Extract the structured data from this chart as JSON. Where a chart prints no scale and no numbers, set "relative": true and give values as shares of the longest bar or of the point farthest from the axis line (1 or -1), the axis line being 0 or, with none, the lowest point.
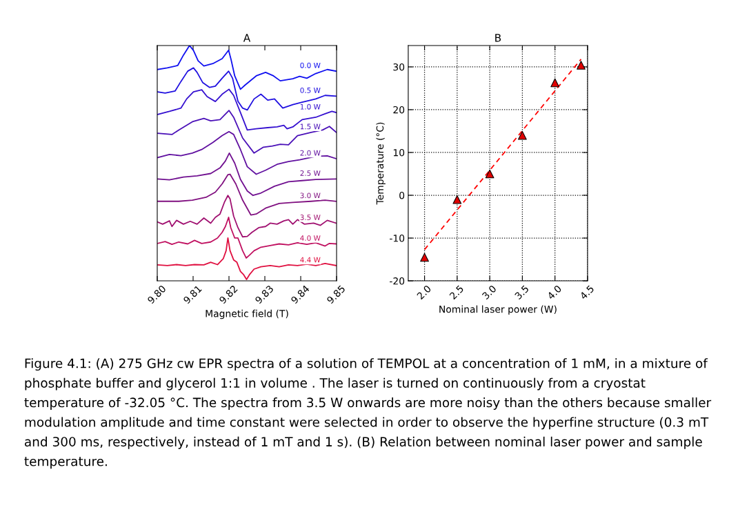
{
  "chart_data": [
    {
      "type": "line",
      "title": "A",
      "xlabel": "Magnetic field (T)",
      "relative": true,
      "xlim": [
        9.8,
        9.85
      ],
      "xticks": [
        {
          "value": 9.8,
          "label": "9.80"
        },
        {
          "value": 9.81,
          "label": "9.81"
        },
        {
          "value": 9.82,
          "label": "9.82"
        },
        {
          "value": 9.83,
          "label": "9.83"
        },
        {
          "value": 9.84,
          "label": "9.84"
        },
        {
          "value": 9.85,
          "label": "9.85"
        }
      ],
      "series": [
        {
          "name": "0.0 W",
          "color": "#1010f0",
          "x": [
            9.8001,
            9.8028,
            9.8057,
            9.8073,
            9.809,
            9.8101,
            9.8114,
            9.813,
            9.8155,
            9.8181,
            9.8199,
            9.8206,
            9.8216,
            9.8232,
            9.8245,
            9.8276,
            9.8302,
            9.8324,
            9.8343,
            9.8378,
            9.8397,
            9.8417,
            9.8442,
            9.8474,
            9.8499
          ],
          "values": [
            0.898,
            0.905,
            0.915,
            0.959,
            1.0,
            0.979,
            0.935,
            0.913,
            0.923,
            0.944,
            0.98,
            0.939,
            0.871,
            0.814,
            0.832,
            0.871,
            0.886,
            0.871,
            0.85,
            0.859,
            0.869,
            0.861,
            0.881,
            0.898,
            0.891
          ]
        },
        {
          "name": "0.5 W",
          "color": "#2010e0",
          "x": [
            9.8001,
            9.8022,
            9.805,
            9.8066,
            9.8085,
            9.8101,
            9.8111,
            9.8127,
            9.8146,
            9.8162,
            9.8181,
            9.8199,
            9.821,
            9.8225,
            9.8238,
            9.8251,
            9.827,
            9.8289,
            9.8308,
            9.8327,
            9.835,
            9.8378,
            9.8404,
            9.8442,
            9.8468,
            9.8499
          ],
          "values": [
            0.803,
            0.798,
            0.807,
            0.847,
            0.891,
            0.905,
            0.886,
            0.842,
            0.822,
            0.827,
            0.861,
            0.891,
            0.861,
            0.763,
            0.734,
            0.726,
            0.773,
            0.793,
            0.768,
            0.773,
            0.734,
            0.749,
            0.759,
            0.773,
            0.788,
            0.785
          ]
        },
        {
          "name": "1.0 W",
          "color": "#3510d0",
          "x": [
            9.8001,
            9.8034,
            9.8066,
            9.8082,
            9.8101,
            9.8124,
            9.8139,
            9.8162,
            9.8181,
            9.82,
            9.8213,
            9.8232,
            9.8251,
            9.8276,
            9.8308,
            9.8334,
            9.8353,
            9.8362,
            9.8378,
            9.8404,
            9.8442,
            9.8468,
            9.8487,
            9.8499
          ],
          "values": [
            0.707,
            0.72,
            0.734,
            0.773,
            0.803,
            0.812,
            0.783,
            0.762,
            0.793,
            0.814,
            0.788,
            0.715,
            0.641,
            0.646,
            0.651,
            0.654,
            0.661,
            0.646,
            0.654,
            0.685,
            0.695,
            0.71,
            0.72,
            0.715
          ]
        },
        {
          "name": "1.5 W",
          "color": "#4a10b8",
          "x": [
            9.8001,
            9.8041,
            9.806,
            9.8098,
            9.813,
            9.8149,
            9.8175,
            9.82,
            9.8213,
            9.8238,
            9.827,
            9.8296,
            9.8321,
            9.8343,
            9.8366,
            9.8391,
            9.8429,
            9.8461,
            9.848,
            9.8499
          ],
          "values": [
            0.627,
            0.622,
            0.641,
            0.676,
            0.69,
            0.68,
            0.685,
            0.724,
            0.695,
            0.607,
            0.543,
            0.568,
            0.573,
            0.58,
            0.578,
            0.617,
            0.631,
            0.641,
            0.656,
            0.631
          ]
        },
        {
          "name": "2.0 W",
          "color": "#6010a0",
          "x": [
            9.8001,
            9.8034,
            9.8066,
            9.8098,
            9.8124,
            9.8155,
            9.8181,
            9.82,
            9.8213,
            9.8232,
            9.8251,
            9.8276,
            9.8302,
            9.8334,
            9.8366,
            9.8397,
            9.8442,
            9.8474,
            9.8499
          ],
          "values": [
            0.524,
            0.537,
            0.532,
            0.543,
            0.558,
            0.588,
            0.617,
            0.634,
            0.622,
            0.558,
            0.485,
            0.453,
            0.47,
            0.495,
            0.507,
            0.514,
            0.529,
            0.531,
            0.519
          ]
        },
        {
          "name": "2.5 W",
          "color": "#701090",
          "x": [
            9.8001,
            9.8034,
            9.8073,
            9.8111,
            9.8149,
            9.8175,
            9.819,
            9.8201,
            9.8216,
            9.8232,
            9.8251,
            9.8267,
            9.8289,
            9.8327,
            9.8366,
            9.8404,
            9.8442,
            9.8499
          ],
          "values": [
            0.433,
            0.429,
            0.441,
            0.446,
            0.456,
            0.48,
            0.509,
            0.543,
            0.5,
            0.431,
            0.382,
            0.363,
            0.373,
            0.402,
            0.421,
            0.426,
            0.431,
            0.433
          ]
        },
        {
          "name": "3.0 W",
          "color": "#801080",
          "x": [
            9.8001,
            9.806,
            9.8098,
            9.8136,
            9.8162,
            9.8181,
            9.8197,
            9.8203,
            9.8219,
            9.8238,
            9.8261,
            9.8276,
            9.8302,
            9.834,
            9.8378,
            9.8429,
            9.8468,
            9.8499
          ],
          "values": [
            0.338,
            0.338,
            0.343,
            0.355,
            0.377,
            0.412,
            0.451,
            0.453,
            0.412,
            0.343,
            0.28,
            0.284,
            0.309,
            0.329,
            0.333,
            0.338,
            0.343,
            0.338
          ]
        },
        {
          "name": "3.5 W",
          "color": "#a01070",
          "x": [
            9.8001,
            9.8015,
            9.8034,
            9.8041,
            9.8054,
            9.8073,
            9.8092,
            9.8111,
            9.813,
            9.8149,
            9.8162,
            9.8175,
            9.8187,
            9.8197,
            9.8203,
            9.8213,
            9.8225,
            9.8238,
            9.8251,
            9.8264,
            9.8283,
            9.8302,
            9.8315,
            9.8334,
            9.8353,
            9.8366,
            9.8378,
            9.8391,
            9.841,
            9.8436,
            9.8455,
            9.8474,
            9.8499
          ],
          "values": [
            0.25,
            0.241,
            0.255,
            0.231,
            0.257,
            0.241,
            0.253,
            0.241,
            0.267,
            0.245,
            0.27,
            0.284,
            0.333,
            0.363,
            0.348,
            0.275,
            0.226,
            0.187,
            0.189,
            0.206,
            0.226,
            0.231,
            0.245,
            0.241,
            0.255,
            0.26,
            0.241,
            0.26,
            0.241,
            0.245,
            0.236,
            0.257,
            0.245
          ]
        },
        {
          "name": "4.0 W",
          "color": "#c01060",
          "x": [
            9.8001,
            9.8022,
            9.8041,
            9.806,
            9.8085,
            9.8104,
            9.8124,
            9.8149,
            9.8168,
            9.8181,
            9.819,
            9.8199,
            9.8205,
            9.8216,
            9.8225,
            9.8238,
            9.8248,
            9.8257,
            9.827,
            9.8289,
            9.8315,
            9.834,
            9.8366,
            9.8391,
            9.8417,
            9.8442,
            9.8468,
            9.848,
            9.8499
          ],
          "values": [
            0.159,
            0.167,
            0.155,
            0.165,
            0.157,
            0.172,
            0.159,
            0.165,
            0.182,
            0.206,
            0.231,
            0.27,
            0.226,
            0.182,
            0.182,
            0.128,
            0.097,
            0.109,
            0.128,
            0.143,
            0.15,
            0.157,
            0.153,
            0.162,
            0.155,
            0.162,
            0.148,
            0.159,
            0.157
          ]
        },
        {
          "name": "4.4 W",
          "color": "#e01040",
          "x": [
            9.8001,
            9.8028,
            9.8054,
            9.8079,
            9.8104,
            9.813,
            9.8149,
            9.8168,
            9.8184,
            9.8192,
            9.8197,
            9.8203,
            9.8213,
            9.8222,
            9.8232,
            9.8241,
            9.8249,
            9.8257,
            9.827,
            9.8289,
            9.8315,
            9.834,
            9.8366,
            9.8391,
            9.8417,
            9.8442,
            9.8468,
            9.8499
          ],
          "values": [
            0.068,
            0.065,
            0.069,
            0.065,
            0.069,
            0.068,
            0.079,
            0.069,
            0.094,
            0.128,
            0.182,
            0.128,
            0.089,
            0.079,
            0.04,
            0.026,
            0.006,
            0.026,
            0.05,
            0.06,
            0.065,
            0.06,
            0.068,
            0.065,
            0.071,
            0.065,
            0.074,
            0.065
          ]
        }
      ],
      "annotations": [
        "Figure 4.1: (A) 275 GHz cw EPR spectra of a solution of TEMPOL at a concentration of 1 mM, in a mixture of phosphate buffer and glycerol 1:1 in volume . The laser is turned on continuously from a cryostat temperature of -32.05 °C. The spectra from 3.5 W onwards are more noisy than the others because smaller modulation amplitude and time constant were selected in order to observe the hyperfine structure (0.3 mT and 300 ms, respectively, instead of 1 mT and 1 s). (B) Relation between nominal laser power and sample temperature."
      ]
    },
    {
      "type": "scatter",
      "title": "B",
      "xlabel": "Nominal laser power (W)",
      "ylabel": "Temperature (°C)",
      "xlim": [
        1.75,
        4.5
      ],
      "ylim": [
        -20,
        35
      ],
      "xticks": [
        {
          "value": 2.0,
          "label": "2.0"
        },
        {
          "value": 2.5,
          "label": "2.5"
        },
        {
          "value": 3.0,
          "label": "3.0"
        },
        {
          "value": 3.5,
          "label": "3.5"
        },
        {
          "value": 4.0,
          "label": "4.0"
        },
        {
          "value": 4.5,
          "label": "4.5"
        }
      ],
      "yticks": [
        -20,
        -10,
        0,
        10,
        20,
        30
      ],
      "grid": true,
      "series": [
        {
          "type": "scatter",
          "color": "#e00000",
          "marker": "triangle",
          "x": [
            2.0,
            2.5,
            3.0,
            3.5,
            4.0,
            4.4
          ],
          "values": [
            -14.5,
            -1,
            5,
            14,
            26.3,
            30.4
          ]
        },
        {
          "type": "line",
          "color": "#ff0000",
          "line_style": "dashed",
          "x": [
            2.0,
            4.4
          ],
          "values": [
            -12.7,
            31.8
          ]
        }
      ]
    }
  ]
}
